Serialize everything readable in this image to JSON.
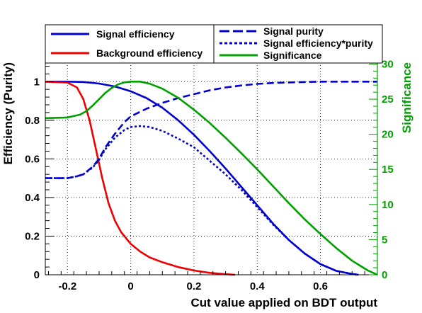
{
  "chart_data": {
    "type": "line",
    "xlabel": "Cut value applied on BDT output",
    "ylabel": "Efficiency (Purity)",
    "y2label": "Significance",
    "xlim": [
      -0.27,
      0.78
    ],
    "ylim": [
      0,
      1.1
    ],
    "y2lim": [
      0,
      30.25
    ],
    "grid": true,
    "x_ticks": [
      -0.2,
      0,
      0.2,
      0.4,
      0.6
    ],
    "x_tick_labels": [
      "-0.2",
      "0",
      "0.2",
      "0.4",
      "0.6"
    ],
    "y_ticks": [
      0,
      0.2,
      0.4,
      0.6,
      0.8,
      1
    ],
    "y_tick_labels": [
      "0",
      "0.2",
      "0.4",
      "0.6",
      "0.8",
      "1"
    ],
    "y2_ticks": [
      0,
      5,
      10,
      15,
      20,
      25,
      30
    ],
    "y2_tick_labels": [
      "0",
      "5",
      "10",
      "15",
      "20",
      "25",
      "30"
    ],
    "legend": {
      "placement": "top",
      "entries": [
        {
          "label": "Signal efficiency",
          "color": "#0000cc",
          "style": "solid"
        },
        {
          "label": "Background efficiency",
          "color": "#ee0000",
          "style": "solid"
        },
        {
          "label": "Signal purity",
          "color": "#0000cc",
          "style": "dashed"
        },
        {
          "label": "Signal efficiency*purity",
          "color": "#0000cc",
          "style": "dotted"
        },
        {
          "label": "Significance",
          "color": "#00a000",
          "style": "solid"
        }
      ]
    },
    "series": [
      {
        "name": "Signal efficiency",
        "axis": "left",
        "color": "#0000cc",
        "style": "solid",
        "x": [
          -0.27,
          -0.2,
          -0.15,
          -0.1,
          -0.05,
          0,
          0.05,
          0.1,
          0.15,
          0.2,
          0.25,
          0.3,
          0.35,
          0.4,
          0.45,
          0.5,
          0.55,
          0.6,
          0.65,
          0.7,
          0.72
        ],
        "y": [
          1.0,
          1.0,
          0.998,
          0.99,
          0.975,
          0.95,
          0.915,
          0.865,
          0.8,
          0.725,
          0.64,
          0.55,
          0.455,
          0.36,
          0.265,
          0.18,
          0.11,
          0.055,
          0.02,
          0.004,
          0.0
        ]
      },
      {
        "name": "Background efficiency",
        "axis": "left",
        "color": "#ee0000",
        "style": "solid",
        "x": [
          -0.27,
          -0.2,
          -0.17,
          -0.15,
          -0.13,
          -0.11,
          -0.09,
          -0.07,
          -0.05,
          -0.03,
          0,
          0.03,
          0.06,
          0.1,
          0.15,
          0.2,
          0.25,
          0.3,
          0.33
        ],
        "y": [
          1.0,
          0.995,
          0.97,
          0.91,
          0.8,
          0.65,
          0.5,
          0.37,
          0.28,
          0.22,
          0.16,
          0.12,
          0.09,
          0.065,
          0.04,
          0.022,
          0.01,
          0.003,
          0.0
        ]
      },
      {
        "name": "Signal purity",
        "axis": "left",
        "color": "#0000cc",
        "style": "dashed",
        "x": [
          -0.27,
          -0.2,
          -0.17,
          -0.15,
          -0.12,
          -0.1,
          -0.08,
          -0.05,
          -0.02,
          0,
          0.05,
          0.1,
          0.15,
          0.2,
          0.25,
          0.3,
          0.35,
          0.4,
          0.45,
          0.5,
          0.55,
          0.6,
          0.7,
          0.78
        ],
        "y": [
          0.5,
          0.5,
          0.51,
          0.52,
          0.56,
          0.6,
          0.66,
          0.73,
          0.79,
          0.82,
          0.86,
          0.89,
          0.915,
          0.935,
          0.955,
          0.97,
          0.98,
          0.988,
          0.993,
          0.996,
          0.998,
          1.0,
          1.0,
          1.0
        ]
      },
      {
        "name": "Signal efficiency*purity",
        "axis": "left",
        "color": "#0000cc",
        "style": "dotted",
        "x": [
          -0.27,
          -0.2,
          -0.17,
          -0.15,
          -0.12,
          -0.1,
          -0.08,
          -0.05,
          -0.02,
          0,
          0.03,
          0.06,
          0.1,
          0.15,
          0.2,
          0.25,
          0.3,
          0.35,
          0.4,
          0.45,
          0.5,
          0.55,
          0.6,
          0.65,
          0.7,
          0.72
        ],
        "y": [
          0.5,
          0.5,
          0.51,
          0.52,
          0.555,
          0.595,
          0.65,
          0.71,
          0.75,
          0.765,
          0.77,
          0.765,
          0.745,
          0.705,
          0.66,
          0.59,
          0.52,
          0.44,
          0.35,
          0.26,
          0.18,
          0.11,
          0.055,
          0.02,
          0.004,
          0.0
        ]
      },
      {
        "name": "Significance",
        "axis": "right",
        "color": "#00a000",
        "style": "solid",
        "x": [
          -0.27,
          -0.2,
          -0.16,
          -0.14,
          -0.12,
          -0.1,
          -0.08,
          -0.06,
          -0.04,
          -0.02,
          0,
          0.03,
          0.06,
          0.1,
          0.15,
          0.2,
          0.25,
          0.3,
          0.35,
          0.4,
          0.45,
          0.5,
          0.55,
          0.6,
          0.65,
          0.7,
          0.75,
          0.78
        ],
        "y": [
          22.3,
          22.4,
          22.8,
          23.3,
          24.1,
          25.0,
          25.9,
          26.6,
          27.1,
          27.4,
          27.5,
          27.5,
          27.2,
          26.5,
          25.2,
          23.5,
          21.6,
          19.5,
          17.3,
          15.0,
          12.6,
          10.2,
          7.9,
          5.8,
          3.8,
          2.0,
          0.6,
          0.0
        ]
      }
    ]
  }
}
